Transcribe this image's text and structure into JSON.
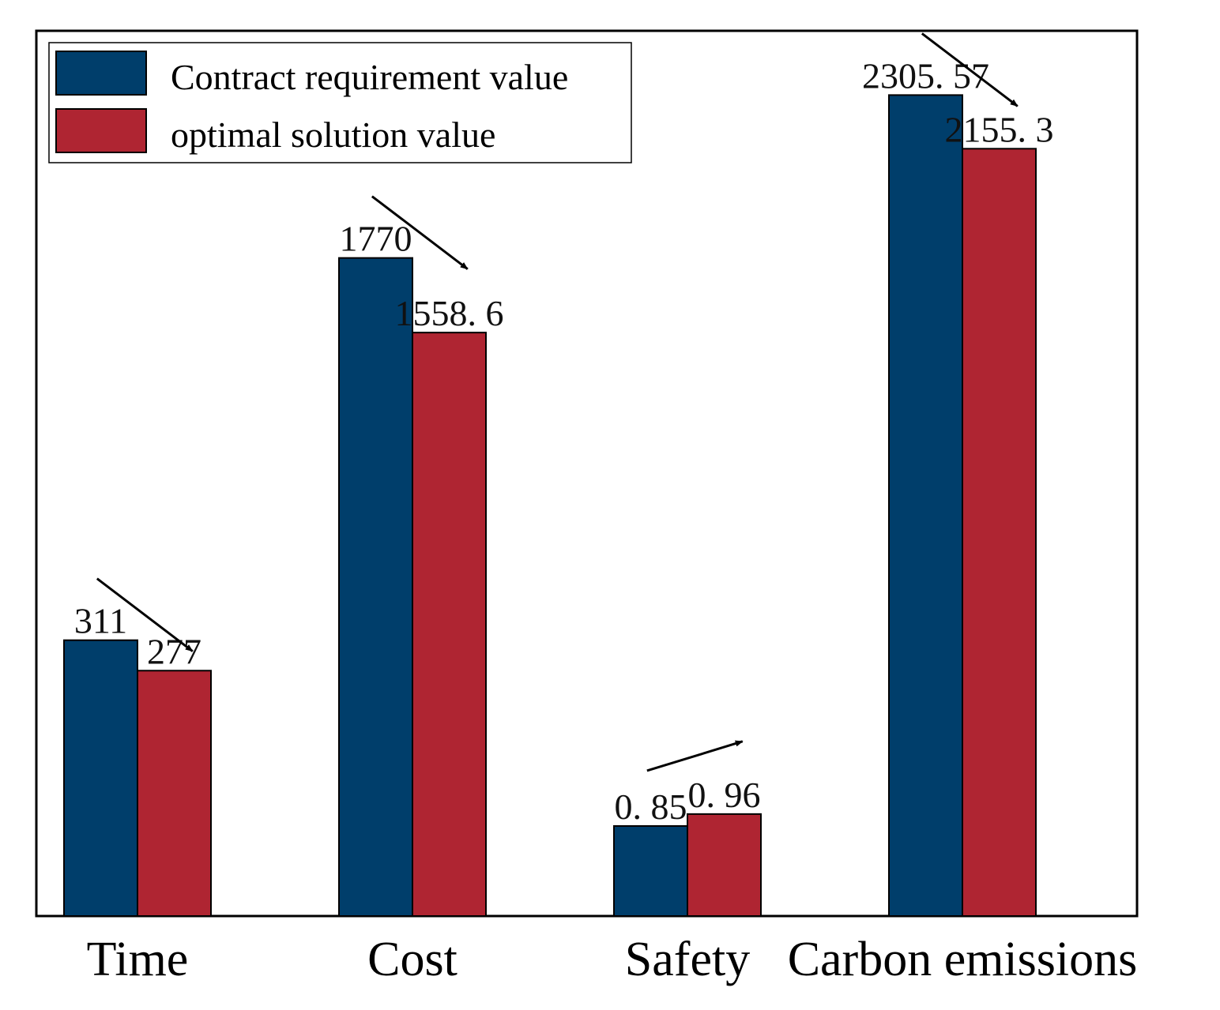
{
  "chart_data": {
    "type": "bar",
    "categories": [
      "Time",
      "Cost",
      "Safety",
      "Carbon emissions"
    ],
    "series": [
      {
        "name": "Contract requirement value",
        "color": "#003E6B",
        "values": [
          311,
          1770,
          0.85,
          2305.57
        ],
        "labels": [
          "311",
          "1770",
          "0. 85",
          "2305. 57"
        ]
      },
      {
        "name": "optimal solution value",
        "color": "#AF2532",
        "values": [
          277,
          1558.6,
          0.96,
          2155.3
        ],
        "labels": [
          "277",
          "1558. 6",
          "0. 96",
          "2155. 3"
        ]
      }
    ],
    "display_heights": [
      [
        0.3116,
        0.7434,
        0.1017,
        0.9274
      ],
      [
        0.2772,
        0.6591,
        0.1152,
        0.8668
      ]
    ],
    "trend": [
      "down",
      "down",
      "up",
      "down"
    ],
    "legend": {
      "position": "top-left"
    },
    "grid": false,
    "title": "",
    "xlabel": "",
    "ylabel": ""
  }
}
